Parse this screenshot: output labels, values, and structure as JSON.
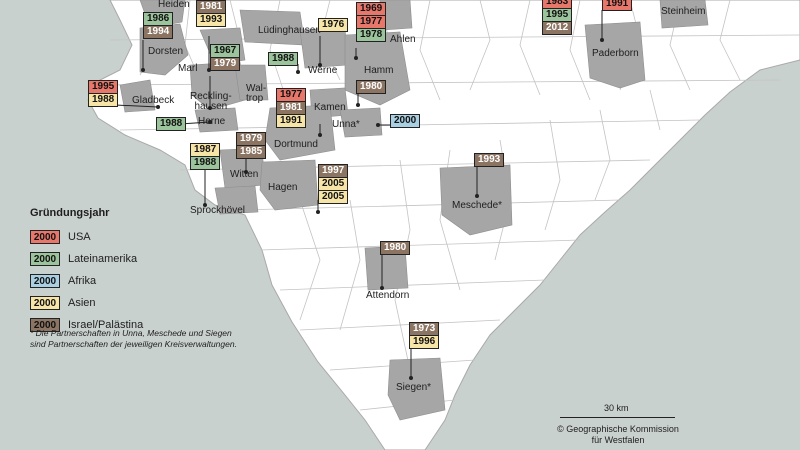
{
  "legend": {
    "title": "Gründungsjahr",
    "items": [
      {
        "year": "2000",
        "label": "USA",
        "cls": "c-usa"
      },
      {
        "year": "2000",
        "label": "Lateinamerika",
        "cls": "c-lat"
      },
      {
        "year": "2000",
        "label": "Afrika",
        "cls": "c-afr"
      },
      {
        "year": "2000",
        "label": "Asien",
        "cls": "c-asia"
      },
      {
        "year": "2000",
        "label": "Israel/Palästina",
        "cls": "c-isr"
      }
    ]
  },
  "note": "* Die Partnerschaften in Unna, Meschede und Siegen sind Partnerschaften der jeweiligen Kreisverwaltungen.",
  "scale": {
    "label": "30 km"
  },
  "credit": {
    "line1": "© Geographische Kommission",
    "line2": "für Westfalen"
  },
  "places": [
    {
      "id": "heiden",
      "name": "Heiden"
    },
    {
      "id": "dorsten",
      "name": "Dorsten"
    },
    {
      "id": "marl",
      "name": "Marl"
    },
    {
      "id": "gladbeck",
      "name": "Gladbeck"
    },
    {
      "id": "recklinghausen",
      "name": "Reckling-\nhausen"
    },
    {
      "id": "herne",
      "name": "Herne"
    },
    {
      "id": "waltrop",
      "name": "Wal-\ntrop"
    },
    {
      "id": "luedinghausen",
      "name": "Lüdinghausen"
    },
    {
      "id": "werne",
      "name": "Werne"
    },
    {
      "id": "hamm",
      "name": "Hamm"
    },
    {
      "id": "ahlen",
      "name": "Ahlen"
    },
    {
      "id": "kamen",
      "name": "Kamen"
    },
    {
      "id": "unna",
      "name": "Unna*"
    },
    {
      "id": "dortmund",
      "name": "Dortmund"
    },
    {
      "id": "witten",
      "name": "Witten"
    },
    {
      "id": "hagen",
      "name": "Hagen"
    },
    {
      "id": "sprockhoevel",
      "name": "Sprockhövel"
    },
    {
      "id": "paderborn",
      "name": "Paderborn"
    },
    {
      "id": "steinheim",
      "name": "Steinheim"
    },
    {
      "id": "meschede",
      "name": "Meschede*"
    },
    {
      "id": "attendorn",
      "name": "Attendorn"
    },
    {
      "id": "siegen",
      "name": "Siegen*"
    }
  ],
  "partnerships": [
    {
      "id": "heiden",
      "years": [
        [
          "1986",
          "c-lat"
        ],
        [
          "1994",
          "c-isr"
        ]
      ]
    },
    {
      "id": "dorsten",
      "years": [
        [
          "1981",
          "c-isr"
        ],
        [
          "1993",
          "c-asia"
        ]
      ]
    },
    {
      "id": "marl",
      "years": [
        [
          "1967",
          "c-lat"
        ],
        [
          "1979",
          "c-isr"
        ]
      ]
    },
    {
      "id": "gladbeck",
      "years": [
        [
          "1995",
          "c-usa"
        ],
        [
          "1988",
          "c-asia"
        ]
      ]
    },
    {
      "id": "herne",
      "years": [
        [
          "1988",
          "c-lat"
        ]
      ]
    },
    {
      "id": "waltrop",
      "years": [
        [
          "1988",
          "c-lat"
        ]
      ]
    },
    {
      "id": "werne",
      "years": [
        [
          "1976",
          "c-asia"
        ]
      ]
    },
    {
      "id": "hamm",
      "years": [
        [
          "1969",
          "c-usa"
        ],
        [
          "1977",
          "c-usa"
        ],
        [
          "1978",
          "c-lat"
        ]
      ]
    },
    {
      "id": "kamen",
      "years": [
        [
          "1980",
          "c-isr"
        ]
      ]
    },
    {
      "id": "dortmund",
      "years": [
        [
          "1977",
          "c-usa"
        ],
        [
          "1981",
          "c-isr"
        ],
        [
          "1991",
          "c-asia"
        ]
      ]
    },
    {
      "id": "unna",
      "years": [
        [
          "2000",
          "c-afr"
        ]
      ]
    },
    {
      "id": "witten-a",
      "years": [
        [
          "1987",
          "c-asia"
        ],
        [
          "1988",
          "c-lat"
        ]
      ]
    },
    {
      "id": "witten-b",
      "years": [
        [
          "1979",
          "c-isr"
        ],
        [
          "1985",
          "c-isr"
        ]
      ]
    },
    {
      "id": "hagen",
      "years": [
        [
          "1997",
          "c-isr"
        ],
        [
          "2005",
          "c-asia"
        ],
        [
          "2005",
          "c-asia"
        ]
      ]
    },
    {
      "id": "paderborn-a",
      "years": [
        [
          "1983",
          "c-usa"
        ],
        [
          "1995",
          "c-lat"
        ],
        [
          "2012",
          "c-isr"
        ]
      ]
    },
    {
      "id": "paderborn-b",
      "years": [
        [
          "1991",
          "c-usa"
        ]
      ]
    },
    {
      "id": "meschede",
      "years": [
        [
          "1993",
          "c-isr"
        ]
      ]
    },
    {
      "id": "attendorn",
      "years": [
        [
          "1980",
          "c-isr"
        ]
      ]
    },
    {
      "id": "siegen",
      "years": [
        [
          "1973",
          "c-isr"
        ],
        [
          "1996",
          "c-asia"
        ]
      ]
    }
  ]
}
